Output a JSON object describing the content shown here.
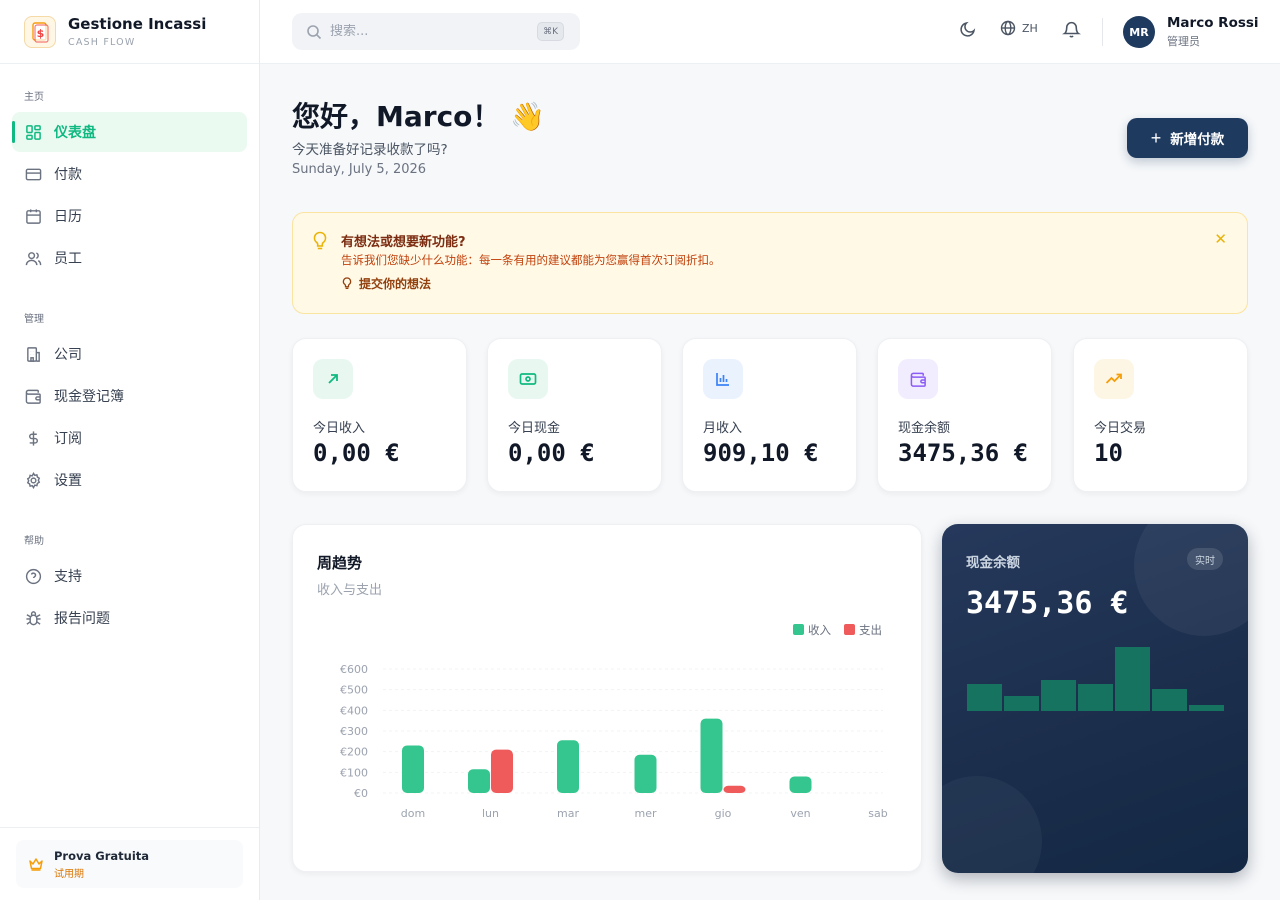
{
  "brand": {
    "title": "Gestione Incassi",
    "subtitle": "CASH FLOW"
  },
  "sidebar": {
    "sections": [
      {
        "label": "主页",
        "items": [
          {
            "label": "仪表盘",
            "icon": "grid-icon",
            "active": true
          },
          {
            "label": "付款",
            "icon": "card-icon"
          },
          {
            "label": "日历",
            "icon": "calendar-icon"
          },
          {
            "label": "员工",
            "icon": "users-icon"
          }
        ]
      },
      {
        "label": "管理",
        "items": [
          {
            "label": "公司",
            "icon": "building-icon"
          },
          {
            "label": "现金登记簿",
            "icon": "wallet-icon"
          },
          {
            "label": "订阅",
            "icon": "dollar-icon"
          },
          {
            "label": "设置",
            "icon": "gear-icon"
          }
        ]
      },
      {
        "label": "帮助",
        "items": [
          {
            "label": "支持",
            "icon": "help-circle-icon"
          },
          {
            "label": "报告问题",
            "icon": "bug-icon"
          }
        ]
      }
    ],
    "trial": {
      "title": "Prova Gratuita",
      "subtitle": "试用期",
      "icon": "crown-icon"
    }
  },
  "header": {
    "search": {
      "placeholder": "搜索...",
      "shortcut": "⌘K"
    },
    "language": "ZH",
    "user": {
      "initials": "MR",
      "name": "Marco Rossi",
      "role": "管理员"
    }
  },
  "main": {
    "greeting": "您好，Marco！ 👋",
    "subtitle": "今天准备好记录收款了吗?",
    "date": "Sunday, July 5, 2026",
    "new_button": "新增付款",
    "banner": {
      "title": "有想法或想要新功能?",
      "text": "告诉我们您缺少什么功能：每一条有用的建议都能为您赢得首次订阅折扣。",
      "link": "提交你的想法"
    },
    "stats": [
      {
        "label": "今日收入",
        "value": "0,00 €",
        "icon": "arrow-up-right-icon",
        "color": "#10b981",
        "bg": "#e8f8f0"
      },
      {
        "label": "今日现金",
        "value": "0,00 €",
        "icon": "banknote-icon",
        "color": "#10b981",
        "bg": "#e8f8f0"
      },
      {
        "label": "月收入",
        "value": "909,10 €",
        "icon": "bar-chart-icon",
        "color": "#3b82f6",
        "bg": "#eaf2fe"
      },
      {
        "label": "现金余额",
        "value": "3475,36 €",
        "icon": "wallet-icon",
        "color": "#8b5cf6",
        "bg": "#f1ecfe"
      },
      {
        "label": "今日交易",
        "value": "10",
        "icon": "trending-up-icon",
        "color": "#f59e0b",
        "bg": "#fef6e4"
      }
    ],
    "cash_card": {
      "title": "现金余额",
      "badge": "实时",
      "value": "3475,36 €"
    }
  },
  "colors": {
    "income": "#34c68e",
    "expense": "#ef5b5b",
    "navy": "#1e3a5f"
  },
  "chart_data": [
    {
      "type": "bar",
      "title": "周趋势",
      "subtitle": "收入与支出",
      "categories": [
        "dom",
        "lun",
        "mar",
        "mer",
        "gio",
        "ven",
        "sab"
      ],
      "series": [
        {
          "name": "收入",
          "values": [
            230,
            115,
            255,
            185,
            360,
            80,
            0
          ]
        },
        {
          "name": "支出",
          "values": [
            0,
            210,
            0,
            0,
            35,
            0,
            0
          ]
        }
      ],
      "ylim": [
        0,
        600
      ],
      "yticks": [
        "€600",
        "€500",
        "€400",
        "€300",
        "€200",
        "€100",
        "€0"
      ],
      "legend": "top-right",
      "grid": true
    },
    {
      "type": "bar",
      "values": [
        27,
        15,
        31,
        27,
        64,
        22,
        6
      ],
      "ylim": [
        0,
        64
      ]
    }
  ]
}
